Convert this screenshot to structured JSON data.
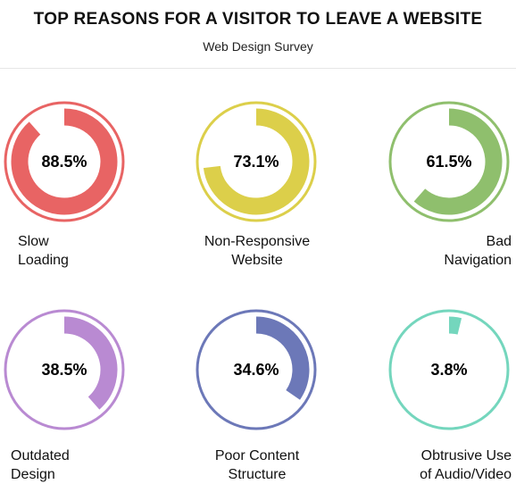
{
  "header": {
    "title": "TOP REASONS FOR A VISITOR TO LEAVE A WEBSITE",
    "subtitle": "Web Design Survey"
  },
  "chart_data": {
    "type": "donut-grid",
    "title": "TOP REASONS FOR A VISITOR TO LEAVE A WEBSITE",
    "subtitle": "Web Design Survey",
    "items": [
      {
        "label_lines": [
          "Slow",
          "Loading"
        ],
        "value": 88.5,
        "display": "88.5%",
        "color": "#e86464"
      },
      {
        "label_lines": [
          "Non-Responsive",
          "Website"
        ],
        "value": 73.1,
        "display": "73.1%",
        "color": "#dccf4a"
      },
      {
        "label_lines": [
          "Bad",
          "Navigation"
        ],
        "value": 61.5,
        "display": "61.5%",
        "color": "#8fbf6d"
      },
      {
        "label_lines": [
          "Outdated",
          "Design"
        ],
        "value": 38.5,
        "display": "38.5%",
        "color": "#b98ad2"
      },
      {
        "label_lines": [
          "Poor Content",
          "Structure"
        ],
        "value": 34.6,
        "display": "34.6%",
        "color": "#6c78b8"
      },
      {
        "label_lines": [
          "Obtrusive Use",
          "of Audio/Video"
        ],
        "value": 3.8,
        "display": "3.8%",
        "color": "#74d6bd"
      }
    ]
  }
}
